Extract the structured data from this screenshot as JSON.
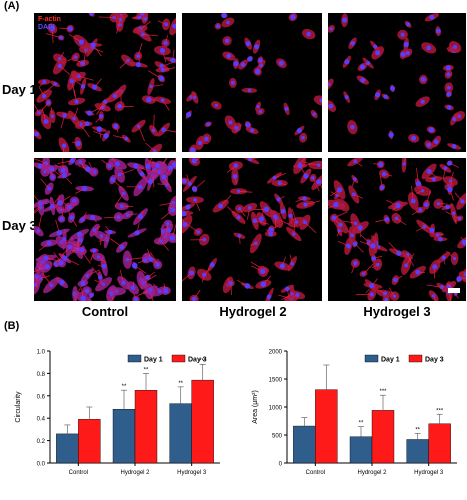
{
  "panel_a_label": "(A)",
  "panel_b_label": "(B)",
  "stain_legend": {
    "factin": "F-actin",
    "dapi": "DAPI",
    "factin_color": "#ff2a2a",
    "dapi_color": "#4040ff"
  },
  "row_labels": [
    "Day 1",
    "Day 3"
  ],
  "column_labels": [
    "Control",
    "Hydrogel 2",
    "Hydrogel 3"
  ],
  "colors": {
    "day1": "#2f5d8c",
    "day3": "#ff1a1a"
  },
  "chart_data": [
    {
      "type": "bar",
      "ylabel": "Circularity",
      "categories": [
        "Control",
        "Hydrogel 2",
        "Hydrogel 3"
      ],
      "ylim": [
        0,
        1.0
      ],
      "yticks": [
        "0.0",
        "0.2",
        "0.4",
        "0.6",
        "0.8",
        "1.0"
      ],
      "legend": {
        "position": "top-right",
        "entries": [
          "Day 1",
          "Day 3"
        ]
      },
      "series": [
        {
          "name": "Day 1",
          "values": [
            0.26,
            0.48,
            0.53
          ],
          "errors": [
            0.08,
            0.17,
            0.15
          ],
          "annotations": [
            "",
            "**",
            "**"
          ]
        },
        {
          "name": "Day 3",
          "values": [
            0.39,
            0.65,
            0.74
          ],
          "errors": [
            0.11,
            0.15,
            0.14
          ],
          "annotations": [
            "",
            "**",
            "***"
          ]
        }
      ]
    },
    {
      "type": "bar",
      "ylabel": "Area (µm²)",
      "categories": [
        "Control",
        "Hydrogel 2",
        "Hydrogel 3"
      ],
      "ylim": [
        0,
        2000
      ],
      "yticks": [
        "0",
        "500",
        "1000",
        "1500",
        "2000"
      ],
      "legend": {
        "position": "top-right",
        "entries": [
          "Day 1",
          "Day 3"
        ]
      },
      "series": [
        {
          "name": "Day 1",
          "values": [
            660,
            470,
            420
          ],
          "errors": [
            150,
            180,
            110
          ],
          "annotations": [
            "",
            "**",
            "**"
          ]
        },
        {
          "name": "Day 3",
          "values": [
            1310,
            940,
            700
          ],
          "errors": [
            440,
            270,
            170
          ],
          "annotations": [
            "",
            "***",
            "***"
          ]
        }
      ]
    }
  ]
}
